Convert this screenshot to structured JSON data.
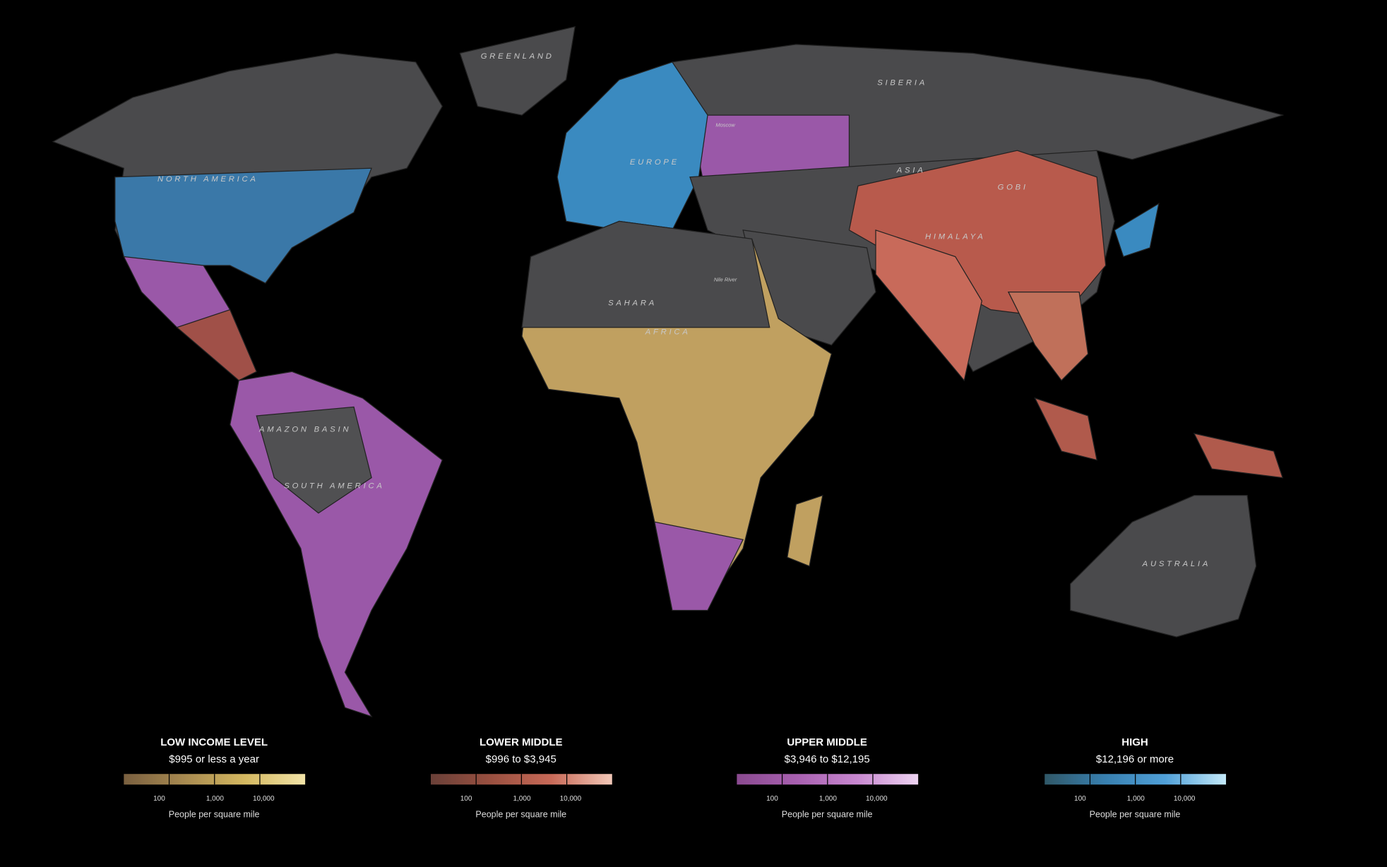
{
  "map": {
    "labels": [
      "GREENLAND",
      "SIBERIA",
      "NORTH AMERICA",
      "EUROPE",
      "ASIA",
      "GOBI",
      "HIMALAYA",
      "SAHARA",
      "AFRICA",
      "AMAZON BASIN",
      "SOUTH AMERICA",
      "AUSTRALIA",
      "Moscow",
      "Nile River"
    ]
  },
  "legend": [
    {
      "title": "LOW INCOME LEVEL",
      "range": "$995 or less a year",
      "colors": [
        "#7a6040",
        "#a88a50",
        "#d4b860",
        "#f2e4a8"
      ],
      "ticks": [
        "100",
        "1,000",
        "10,000"
      ],
      "caption": "People per square mile"
    },
    {
      "title": "LOWER MIDDLE",
      "range": "$996 to $3,945",
      "colors": [
        "#6a4038",
        "#9a5040",
        "#c86a58",
        "#f2c8b8"
      ],
      "ticks": [
        "100",
        "1,000",
        "10,000"
      ],
      "caption": "People per square mile"
    },
    {
      "title": "UPPER MIDDLE",
      "range": "$3,946 to $12,195",
      "colors": [
        "#8a4a90",
        "#a860b0",
        "#c888d0",
        "#eed4f2"
      ],
      "ticks": [
        "100",
        "1,000",
        "10,000"
      ],
      "caption": "People per square mile"
    },
    {
      "title": "HIGH",
      "range": "$12,196 or more",
      "colors": [
        "#305868",
        "#3880b0",
        "#50a0d8",
        "#c4eafa"
      ],
      "ticks": [
        "100",
        "1,000",
        "10,000"
      ],
      "caption": "People per square mile"
    }
  ]
}
